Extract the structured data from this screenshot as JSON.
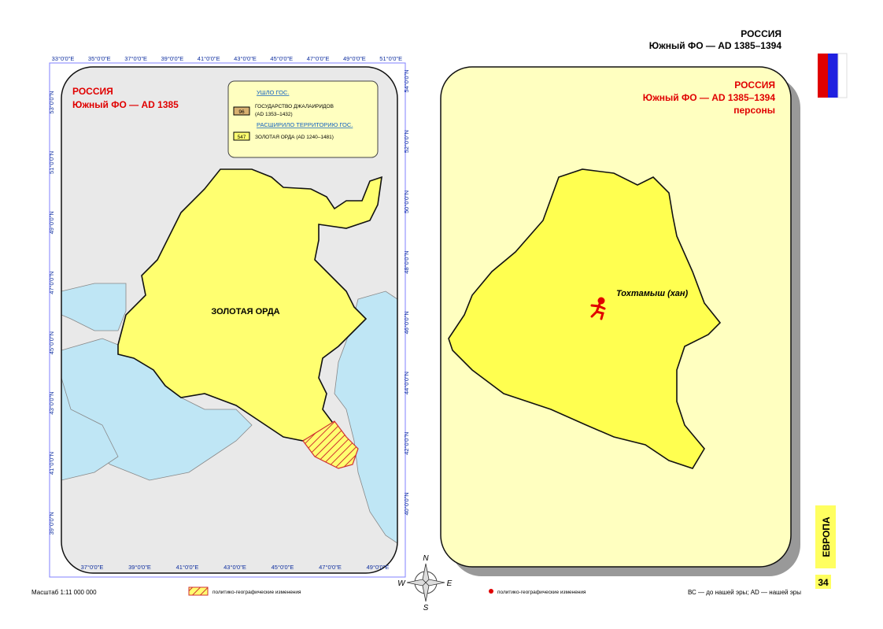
{
  "header": {
    "country": "РОССИЯ",
    "subtitle": "Южный ФО — AD 1385–1394"
  },
  "left_map": {
    "title": "РОССИЯ",
    "subtitle": "Южный ФО — AD 1385",
    "legend": {
      "lost_heading": "УШЛО ГОС.",
      "lost_badge": "96",
      "lost_name": "ГОСУДАРСТВО ДЖАЛАИРИДОВ",
      "lost_dates": "(AD 1353–1432)",
      "gained_heading": "РАСШИРИЛО ТЕРРИТОРИЮ ГОС.",
      "gained_badge": "547",
      "gained_name": "ЗОЛОТАЯ ОРДА (AD 1240–1481)"
    },
    "region_label": "ЗОЛОТАЯ ОРДА",
    "top_ticks": [
      "33°0'0\"E",
      "35°0'0\"E",
      "37°0'0\"E",
      "39°0'0\"E",
      "41°0'0\"E",
      "43°0'0\"E",
      "45°0'0\"E",
      "47°0'0\"E",
      "49°0'0\"E",
      "51°0'0\"E"
    ],
    "bottom_ticks": [
      "37°0'0\"E",
      "39°0'0\"E",
      "41°0'0\"E",
      "43°0'0\"E",
      "45°0'0\"E",
      "47°0'0\"E",
      "49°0'0\"E"
    ],
    "left_ticks": [
      "53°0'0\"N",
      "51°0'0\"N",
      "49°0'0\"N",
      "47°0'0\"N",
      "45°0'0\"N",
      "43°0'0\"N",
      "41°0'0\"N",
      "39°0'0\"N"
    ],
    "right_ticks": [
      "54°0'0\"N",
      "52°0'0\"N",
      "50°0'0\"N",
      "48°0'0\"N",
      "46°0'0\"N",
      "44°0'0\"N",
      "42°0'0\"N",
      "40°0'0\"N"
    ]
  },
  "right_map": {
    "title": "РОССИЯ",
    "subtitle": "Южный ФО — AD 1385–1394",
    "section": "персоны",
    "person": "Тохтамыш (хан)"
  },
  "sidebar": {
    "region": "ЕВРОПА",
    "page": "34"
  },
  "compass": {
    "n": "N",
    "w": "W",
    "e": "E",
    "s": "S"
  },
  "footer": {
    "scale": "Масштаб 1:11 000 000",
    "hatch_legend": "политико-географические изменения",
    "dot_legend": "политико-географические изменения",
    "era_note": "ВС — до нашей эры; AD — нашей эры"
  }
}
